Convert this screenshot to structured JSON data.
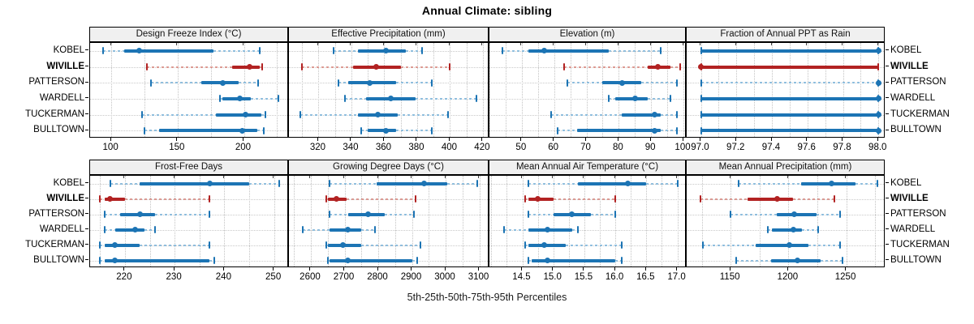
{
  "title": "Annual Climate: sibling",
  "caption": "5th-25th-50th-75th-95th Percentiles",
  "stations": [
    "KOBEL",
    "WIVILLE",
    "PATTERSON",
    "WARDELL",
    "TUCKERMAN",
    "BULLTOWN"
  ],
  "highlight_station": "WIVILLE",
  "colors": {
    "series": "#1c74b4",
    "series_light": "#90bedd",
    "highlight": "#b22222",
    "highlight_light": "#dc9b94",
    "strip_bg": "#f0f0f0",
    "grid": "#c3c3c3",
    "border": "#000000"
  },
  "chart_data": {
    "type": "trellis-percentile-dotplot",
    "note": "Each row: whisker = 5th-95th percentile, thick bar = 25th-75th, dot = median (50th)",
    "percentiles": [
      "5th",
      "25th",
      "50th",
      "75th",
      "95th"
    ],
    "layout": {
      "grid": "2x4",
      "rows_per_panel": 6,
      "legend": "none"
    },
    "panels": [
      {
        "label": "Design Freeze Index (°C)",
        "xlim": [
          84,
          234
        ],
        "minor_step": 25,
        "ticks": [
          100,
          150,
          200
        ],
        "tick_labels": [
          "100",
          "150",
          "200"
        ],
        "series": [
          [
            94,
            110,
            121,
            177,
            212
          ],
          [
            127,
            191,
            204,
            212,
            214
          ],
          [
            130,
            168,
            184,
            196,
            211
          ],
          [
            182,
            184,
            197,
            205,
            226
          ],
          [
            123,
            179,
            201,
            213,
            216
          ],
          [
            125,
            136,
            199,
            210,
            215
          ]
        ]
      },
      {
        "label": "Effective Precipitation (mm)",
        "xlim": [
          302,
          424
        ],
        "minor_step": 10,
        "ticks": [
          320,
          340,
          360,
          380,
          400,
          420
        ],
        "tick_labels": [
          "320",
          "340",
          "360",
          "380",
          "400",
          "420"
        ],
        "series": [
          [
            329,
            344,
            361,
            373,
            383
          ],
          [
            310,
            341,
            355,
            370,
            400
          ],
          [
            332,
            338,
            351,
            367,
            389
          ],
          [
            336,
            349,
            364,
            379,
            416
          ],
          [
            309,
            344,
            356,
            368,
            399
          ],
          [
            346,
            350,
            361,
            367,
            389
          ]
        ]
      },
      {
        "label": "Elevation (m)",
        "xlim": [
          40,
          101
        ],
        "minor_step": 5,
        "ticks": [
          50,
          60,
          70,
          80,
          90,
          100
        ],
        "tick_labels": [
          "50",
          "60",
          "70",
          "80",
          "90",
          "100"
        ],
        "series": [
          [
            44,
            52,
            57,
            77,
            93
          ],
          [
            63,
            89,
            92,
            96,
            99
          ],
          [
            64,
            75,
            81,
            87,
            98
          ],
          [
            77,
            79,
            85,
            89,
            96
          ],
          [
            59,
            81,
            91,
            93,
            98
          ],
          [
            61,
            67,
            91,
            93,
            98
          ]
        ]
      },
      {
        "label": "Fraction of Annual PPT as Rain",
        "xlim": [
          96.92,
          98.04
        ],
        "minor_step": 0.1,
        "ticks": [
          97.0,
          97.2,
          97.4,
          97.6,
          97.8,
          98.0
        ],
        "tick_labels": [
          "97.0",
          "97.2",
          "97.4",
          "97.6",
          "97.8",
          "98.0"
        ],
        "series": [
          [
            97.0,
            97.0,
            98.0,
            98.0,
            98.0
          ],
          [
            97.0,
            97.0,
            97.0,
            98.0,
            98.0
          ],
          [
            97.0,
            98.0,
            98.0,
            98.0,
            98.0
          ],
          [
            97.0,
            97.0,
            98.0,
            98.0,
            98.0
          ],
          [
            97.0,
            97.0,
            98.0,
            98.0,
            98.0
          ],
          [
            97.0,
            97.0,
            98.0,
            98.0,
            98.0
          ]
        ]
      },
      {
        "label": "Frost-Free Days",
        "xlim": [
          213,
          253
        ],
        "minor_step": 5,
        "ticks": [
          220,
          230,
          240,
          250
        ],
        "tick_labels": [
          "220",
          "230",
          "240",
          "250"
        ],
        "series": [
          [
            217,
            223,
            237,
            245,
            251
          ],
          [
            215,
            216,
            217,
            220,
            237
          ],
          [
            216,
            219,
            223,
            226,
            237
          ],
          [
            216,
            218,
            222,
            224,
            226
          ],
          [
            215,
            216,
            218,
            223,
            237
          ],
          [
            215,
            216,
            218,
            237,
            238
          ]
        ]
      },
      {
        "label": "Growing Degree Days (°C)",
        "xlim": [
          2535,
          3130
        ],
        "minor_step": 50,
        "ticks": [
          2600,
          2700,
          2800,
          2900,
          3000,
          3100
        ],
        "tick_labels": [
          "2600",
          "2700",
          "2800",
          "2900",
          "3000",
          "3100"
        ],
        "series": [
          [
            2655,
            2795,
            2935,
            3005,
            3095
          ],
          [
            2645,
            2650,
            2677,
            2705,
            2910
          ],
          [
            2655,
            2710,
            2770,
            2820,
            2905
          ],
          [
            2575,
            2655,
            2710,
            2750,
            2790
          ],
          [
            2645,
            2650,
            2695,
            2750,
            2925
          ],
          [
            2650,
            2655,
            2710,
            2900,
            2915
          ]
        ]
      },
      {
        "label": "Mean Annual Air Temperature (°C)",
        "xlim": [
          13.97,
          17.15
        ],
        "minor_step": 0.25,
        "ticks": [
          14.5,
          15.0,
          15.5,
          16.0,
          16.5,
          17.0
        ],
        "tick_labels": [
          "14.5",
          "15.0",
          "15.5",
          "16.0",
          "16.5",
          "17.0"
        ],
        "series": [
          [
            14.6,
            15.4,
            16.2,
            16.5,
            17.0
          ],
          [
            14.55,
            14.6,
            14.75,
            15.0,
            16.0
          ],
          [
            14.6,
            15.0,
            15.3,
            15.6,
            16.0
          ],
          [
            14.2,
            14.6,
            14.9,
            15.3,
            15.4
          ],
          [
            14.55,
            14.6,
            14.85,
            15.2,
            16.1
          ],
          [
            14.6,
            14.65,
            14.9,
            16.0,
            16.1
          ]
        ]
      },
      {
        "label": "Mean Annual Precipitation (mm)",
        "xlim": [
          1112,
          1284
        ],
        "minor_step": 25,
        "ticks": [
          1150,
          1200,
          1250
        ],
        "tick_labels": [
          "1150",
          "1200",
          "1250"
        ],
        "series": [
          [
            1157,
            1211,
            1237,
            1258,
            1277
          ],
          [
            1124,
            1165,
            1190,
            1204,
            1240
          ],
          [
            1150,
            1190,
            1205,
            1224,
            1245
          ],
          [
            1182,
            1186,
            1204,
            1212,
            1226
          ],
          [
            1126,
            1172,
            1201,
            1217,
            1245
          ],
          [
            1155,
            1185,
            1208,
            1228,
            1247
          ]
        ]
      }
    ]
  }
}
